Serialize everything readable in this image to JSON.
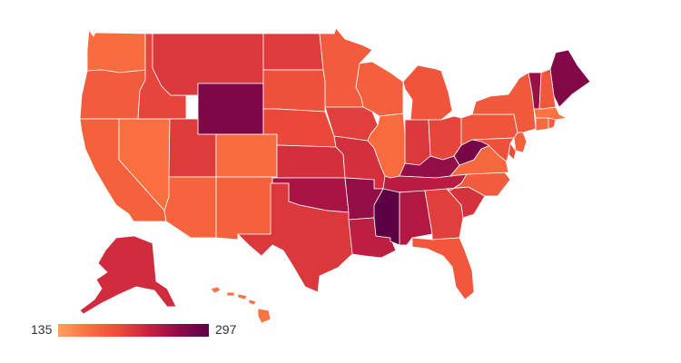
{
  "legend": {
    "min_label": "135",
    "max_label": "297",
    "min_value": 135,
    "max_value": 297
  },
  "color_scale": [
    "#fca05c",
    "#f9703f",
    "#ec4c3a",
    "#c8223f",
    "#8e0b48",
    "#5c0046"
  ],
  "state_values": {
    "WA": 170,
    "OR": 185,
    "CA": 180,
    "NV": 168,
    "ID": 205,
    "MT": 215,
    "WY": 275,
    "UT": 212,
    "AZ": 178,
    "CO": 172,
    "NM": 180,
    "ND": 213,
    "SD": 195,
    "NE": 202,
    "KS": 222,
    "OK": 250,
    "TX": 215,
    "MN": 185,
    "IA": 210,
    "MO": 222,
    "AR": 262,
    "LA": 238,
    "WI": 182,
    "IL": 172,
    "MI": 192,
    "IN": 215,
    "OH": 205,
    "KY": 262,
    "TN": 240,
    "MS": 297,
    "AL": 245,
    "GA": 210,
    "FL": 190,
    "SC": 220,
    "NC": 185,
    "VA": 175,
    "WV": 280,
    "PA": 192,
    "NY": 188,
    "ME": 272,
    "VT": 258,
    "NH": 190,
    "MA": 165,
    "RI": 185,
    "CT": 175,
    "NJ": 182,
    "DE": 200,
    "MD": 195,
    "AK": 225,
    "HI": 165
  }
}
